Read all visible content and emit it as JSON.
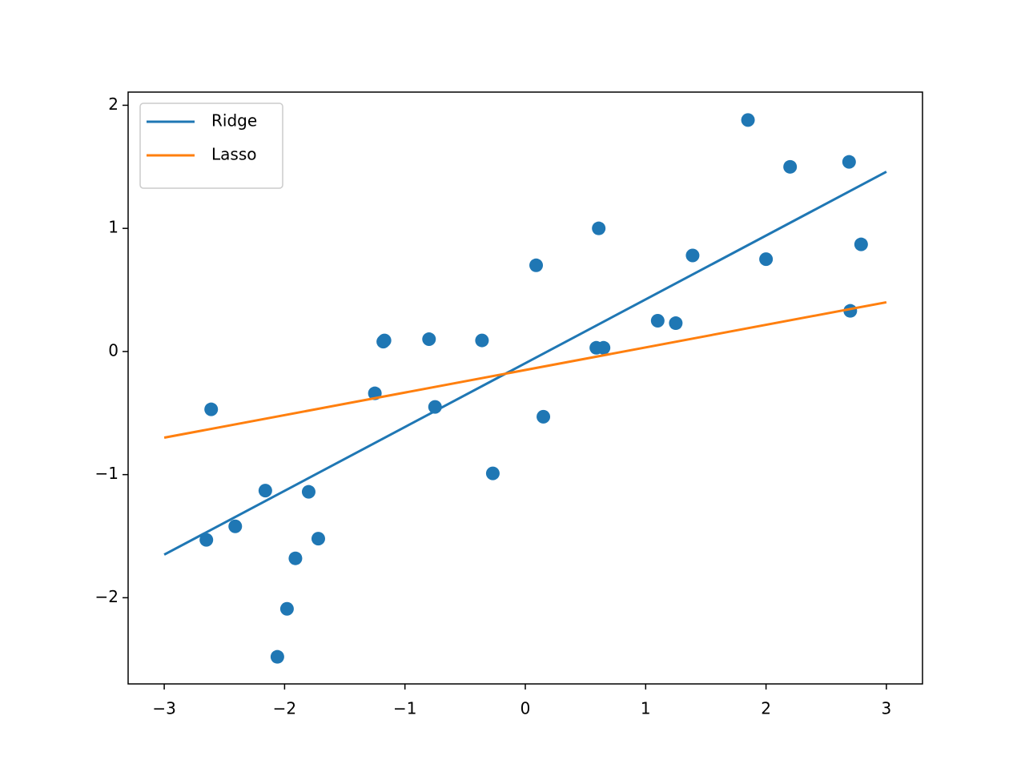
{
  "chart_data": {
    "type": "scatter",
    "xlim": [
      -3.3,
      3.3
    ],
    "ylim": [
      -2.7,
      2.107
    ],
    "xticks": [
      {
        "value": -3,
        "label": "−3"
      },
      {
        "value": -2,
        "label": "−2"
      },
      {
        "value": -1,
        "label": "−1"
      },
      0,
      1,
      2,
      3
    ],
    "yticks": [
      {
        "value": -2,
        "label": "−2"
      },
      {
        "value": -1,
        "label": "−1"
      },
      0,
      1,
      2
    ],
    "legend": "upper left",
    "points": {
      "color": "#1f77b4",
      "x": [
        -2.61,
        -2.65,
        -2.41,
        -2.16,
        -2.06,
        -1.98,
        -1.91,
        -1.8,
        -1.72,
        -1.25,
        -1.17,
        -1.18,
        -0.8,
        -0.75,
        -0.36,
        -0.27,
        0.09,
        0.15,
        0.59,
        0.65,
        0.61,
        1.1,
        1.25,
        1.39,
        1.85,
        2.0,
        2.2,
        2.69,
        2.7,
        2.79
      ],
      "values": [
        -0.47,
        -1.53,
        -1.42,
        -1.13,
        -2.48,
        -2.09,
        -1.68,
        -1.14,
        -1.52,
        -0.34,
        0.09,
        0.08,
        0.1,
        -0.45,
        0.09,
        -0.99,
        0.7,
        -0.53,
        0.03,
        0.03,
        1.0,
        0.25,
        0.23,
        0.78,
        1.88,
        0.75,
        1.5,
        1.54,
        0.33,
        0.87
      ]
    },
    "series": [
      {
        "name": "Ridge",
        "color": "#1f77b4",
        "x": [
          -3,
          3
        ],
        "values": [
          -1.65,
          1.46
        ]
      },
      {
        "name": "Lasso",
        "color": "#ff7f0e",
        "x": [
          -3,
          3
        ],
        "values": [
          -0.7,
          0.4
        ]
      }
    ]
  }
}
